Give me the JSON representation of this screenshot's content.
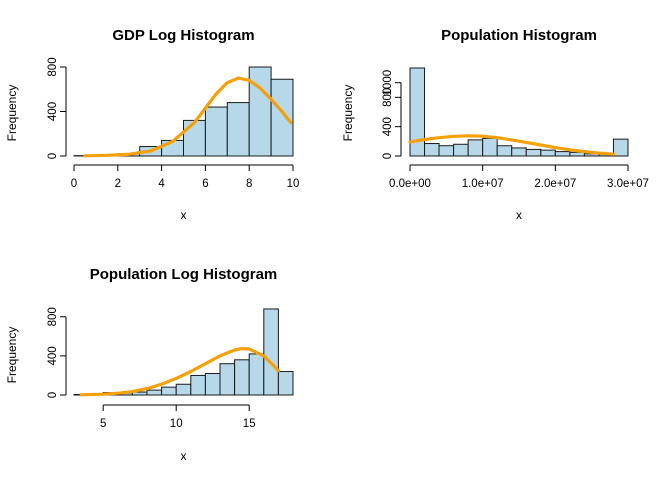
{
  "chart_data": [
    {
      "type": "bar",
      "title": "GDP Log Histogram",
      "xlabel": "x",
      "ylabel": "Frequency",
      "xlim": [
        0,
        10
      ],
      "ylim": [
        0,
        800
      ],
      "xticks": [
        "0",
        "2",
        "4",
        "6",
        "8",
        "10"
      ],
      "xtick_values": [
        0,
        2,
        4,
        6,
        8,
        10
      ],
      "yticks": [
        "0",
        "400",
        "800"
      ],
      "ytick_values": [
        0,
        400,
        800
      ],
      "bins": [
        [
          0,
          1
        ],
        [
          1,
          2
        ],
        [
          2,
          3
        ],
        [
          3,
          4
        ],
        [
          4,
          5
        ],
        [
          5,
          6
        ],
        [
          6,
          7
        ],
        [
          7,
          8
        ],
        [
          8,
          9
        ],
        [
          9,
          10
        ]
      ],
      "values": [
        3,
        5,
        20,
        85,
        140,
        320,
        440,
        480,
        800,
        690
      ],
      "curve": {
        "color": "#f5a00a",
        "x": [
          0.5,
          1.5,
          2.5,
          3.5,
          4.5,
          5.5,
          6.5,
          7.0,
          7.5,
          8.0,
          8.5,
          9.0,
          9.5,
          9.9
        ],
        "y": [
          2,
          6,
          15,
          45,
          130,
          300,
          560,
          660,
          700,
          680,
          610,
          510,
          400,
          300
        ]
      }
    },
    {
      "type": "bar",
      "title": "Population Histogram",
      "xlabel": "x",
      "ylabel": "Frequency",
      "xlim": [
        0,
        30000000
      ],
      "ylim": [
        0,
        1200
      ],
      "xticks": [
        "0.0e+00",
        "1.0e+07",
        "2.0e+07",
        "3.0e+07"
      ],
      "xtick_values": [
        0,
        10000000,
        20000000,
        30000000
      ],
      "yticks": [
        "0",
        "400",
        "800",
        "1000"
      ],
      "ytick_values": [
        0,
        400,
        800,
        1000
      ],
      "bin_width": 2000000,
      "values": [
        1200,
        170,
        140,
        160,
        220,
        240,
        140,
        110,
        90,
        80,
        60,
        50,
        30,
        20,
        230
      ],
      "curve": {
        "color": "#f5a00a",
        "x": [
          0,
          2000000,
          4000000,
          6000000,
          8000000,
          10000000,
          12000000,
          14000000,
          16000000,
          18000000,
          20000000,
          22000000,
          24000000,
          26000000,
          28000000
        ],
        "y": [
          190,
          225,
          250,
          268,
          275,
          270,
          250,
          220,
          185,
          150,
          115,
          85,
          60,
          40,
          25
        ]
      }
    },
    {
      "type": "bar",
      "title": "Population Log Histogram",
      "xlabel": "x",
      "ylabel": "Frequency",
      "xlim": [
        3,
        18
      ],
      "ylim": [
        0,
        900
      ],
      "xticks": [
        "5",
        "10",
        "15"
      ],
      "xtick_values": [
        5,
        10,
        15
      ],
      "yticks": [
        "0",
        "400",
        "800"
      ],
      "ytick_values": [
        0,
        400,
        800
      ],
      "bins": [
        [
          3,
          4
        ],
        [
          4,
          5
        ],
        [
          5,
          6
        ],
        [
          6,
          7
        ],
        [
          7,
          8
        ],
        [
          8,
          9
        ],
        [
          9,
          10
        ],
        [
          10,
          11
        ],
        [
          11,
          12
        ],
        [
          12,
          13
        ],
        [
          13,
          14
        ],
        [
          14,
          15
        ],
        [
          15,
          16
        ],
        [
          16,
          17
        ],
        [
          17,
          18
        ]
      ],
      "values": [
        5,
        8,
        25,
        20,
        30,
        50,
        80,
        110,
        200,
        220,
        320,
        360,
        420,
        880,
        240
      ],
      "curve": {
        "color": "#f5a00a",
        "x": [
          3.5,
          5,
          6,
          7,
          8,
          9,
          10,
          11,
          12,
          13,
          14,
          14.5,
          15,
          16,
          17
        ],
        "y": [
          2,
          8,
          18,
          35,
          65,
          110,
          170,
          240,
          320,
          400,
          460,
          475,
          470,
          400,
          250
        ]
      }
    }
  ]
}
